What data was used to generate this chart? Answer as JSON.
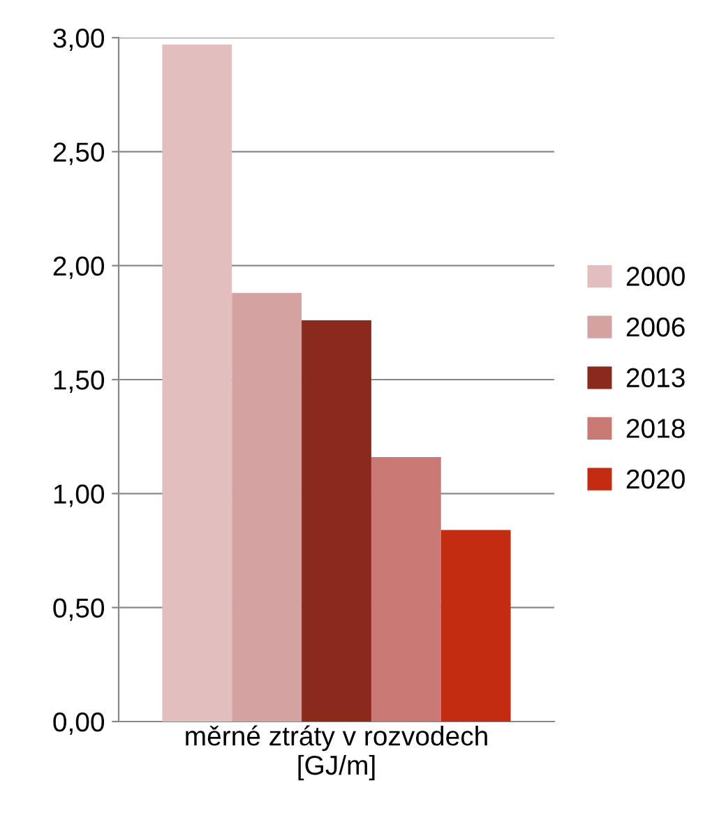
{
  "chart_data": {
    "type": "bar",
    "categories": [
      null
    ],
    "xlabel": "měrné ztráty v rozvodech\n[GJ/m]",
    "series": [
      {
        "name": "2000",
        "color": "#e3bebe",
        "values": [
          2.97
        ]
      },
      {
        "name": "2006",
        "color": "#d4a2a0",
        "values": [
          1.88
        ]
      },
      {
        "name": "2013",
        "color": "#8a2a1c",
        "values": [
          1.76
        ]
      },
      {
        "name": "2018",
        "color": "#c97a74",
        "values": [
          1.16
        ]
      },
      {
        "name": "2020",
        "color": "#c42c12",
        "values": [
          0.84
        ]
      }
    ],
    "ylim": [
      0,
      3
    ],
    "yticks": [
      {
        "value": 0,
        "label": "0,00"
      },
      {
        "value": 0.5,
        "label": "0,50"
      },
      {
        "value": 1,
        "label": "1,00"
      },
      {
        "value": 1.5,
        "label": "1,50"
      },
      {
        "value": 2,
        "label": "2,00"
      },
      {
        "value": 2.5,
        "label": "2,50"
      },
      {
        "value": 3,
        "label": "3,00"
      }
    ],
    "grid": "y",
    "legend": "right"
  }
}
